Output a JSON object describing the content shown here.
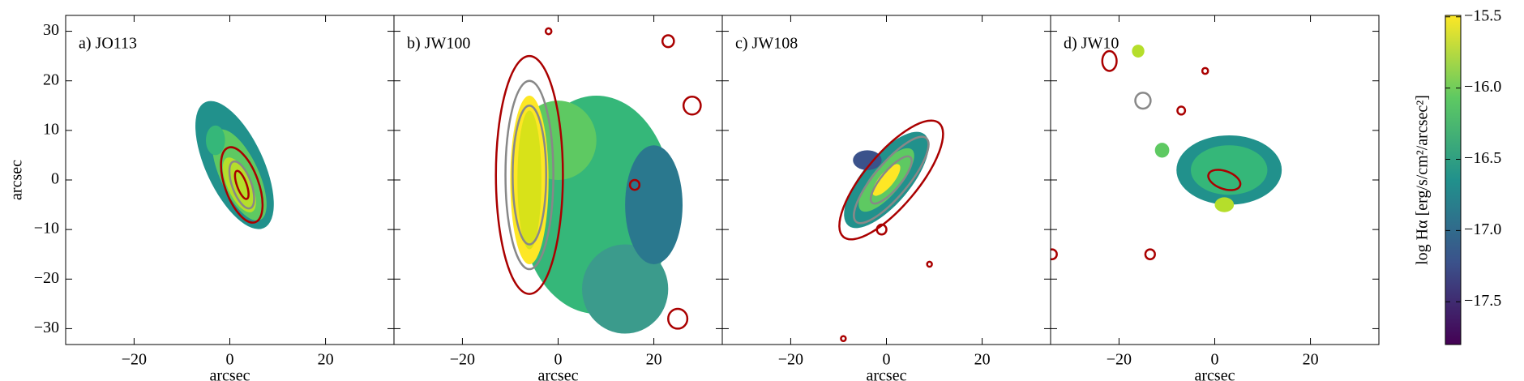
{
  "chart_data": [
    {
      "type": "image",
      "title": "a) JO113",
      "xlabel": "arcsec",
      "ylabel": "arcsec",
      "xlim": [
        -34.3,
        34.3
      ],
      "ylim": [
        -33.2,
        33.2
      ],
      "xticks": [
        {
          "value": -20,
          "label": "−20"
        },
        0,
        20
      ],
      "yticks": [
        {
          "value": -30,
          "label": "−30"
        },
        {
          "value": -20,
          "label": "−20"
        },
        {
          "value": -10,
          "label": "−10"
        },
        0,
        10,
        20,
        30
      ]
    },
    {
      "type": "image",
      "title": "b) JW100",
      "xlabel": "arcsec",
      "xlim": [
        -34.3,
        34.3
      ],
      "ylim": [
        -33.2,
        33.2
      ],
      "xticks": [
        {
          "value": -20,
          "label": "−20"
        },
        0,
        20
      ]
    },
    {
      "type": "image",
      "title": "c) JW108",
      "xlabel": "arcsec",
      "xlim": [
        -34.3,
        34.3
      ],
      "ylim": [
        -33.2,
        33.2
      ],
      "xticks": [
        {
          "value": -20,
          "label": "−20"
        },
        0,
        20
      ]
    },
    {
      "type": "image",
      "title": "d) JW10",
      "xlabel": "arcsec",
      "xlim": [
        -34.3,
        34.3
      ],
      "ylim": [
        -33.2,
        33.2
      ],
      "xticks": [
        {
          "value": -20,
          "label": "−20"
        },
        0,
        20
      ]
    },
    {
      "type": "colorbar",
      "label": "log Hα [erg/s/cm²/arcsec²]",
      "colors": [
        "#440154",
        "#3b528b",
        "#21918c",
        "#5ec962",
        "#fde725"
      ],
      "lim": [
        -17.8,
        -15.49
      ],
      "ticks": [
        {
          "value": -17.5,
          "label": "−17.5"
        },
        {
          "value": -17,
          "label": "−17.0"
        },
        {
          "value": -16.5,
          "label": "−16.5"
        },
        {
          "value": -16,
          "label": "−16.0"
        },
        {
          "value": -15.5,
          "label": "−15.5"
        }
      ]
    }
  ]
}
